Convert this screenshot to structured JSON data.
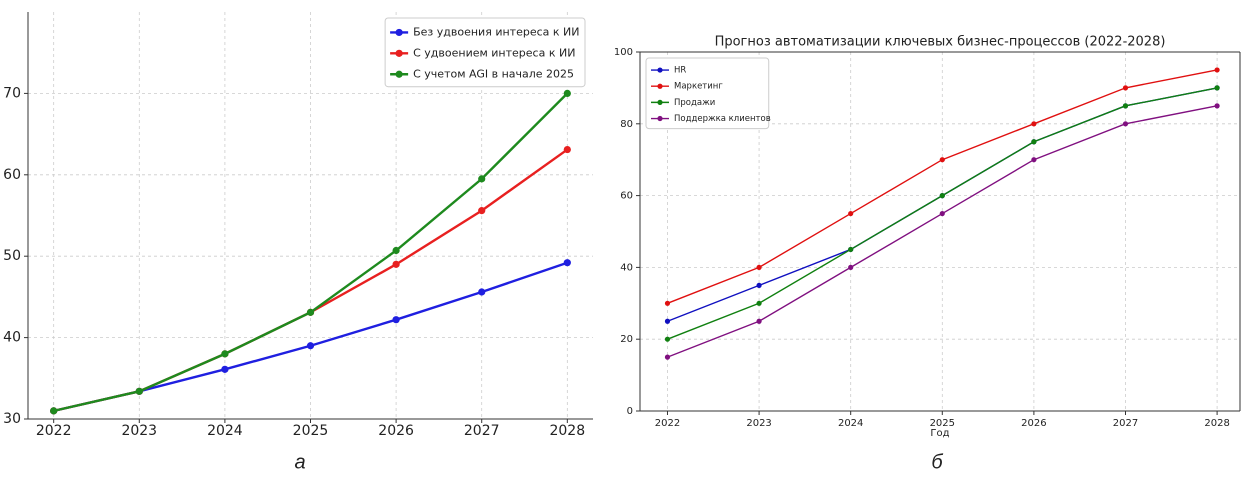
{
  "chart_data": [
    {
      "type": "line",
      "caption": "а",
      "x": [
        2022,
        2023,
        2024,
        2025,
        2026,
        2027,
        2028
      ],
      "xlim": [
        2021.7,
        2028.3
      ],
      "xticks": [
        2022,
        2023,
        2024,
        2025,
        2026,
        2027,
        2028
      ],
      "ylim": [
        30,
        80
      ],
      "yticks": [
        30,
        40,
        50,
        60,
        70
      ],
      "grid": true,
      "legend": "upper right",
      "series": [
        {
          "name": "Без удвоения интереса к ИИ",
          "color": "#1f1fe0",
          "values": [
            31,
            33.4,
            36.1,
            39.0,
            42.2,
            45.6,
            49.2
          ]
        },
        {
          "name": "С удвоением интереса к ИИ",
          "color": "#e82020",
          "values": [
            31,
            33.4,
            38,
            43.1,
            49.0,
            55.6,
            63.1
          ]
        },
        {
          "name": "С учетом AGI в начале 2025",
          "color": "#1e8a1e",
          "values": [
            31,
            33.4,
            38,
            43.1,
            50.7,
            59.5,
            70.0
          ]
        }
      ]
    },
    {
      "type": "line",
      "caption": "б",
      "title": "Прогноз автоматизации ключевых бизнес-процессов (2022-2028)",
      "xlabel": "Год",
      "x": [
        2022,
        2023,
        2024,
        2025,
        2026,
        2027,
        2028
      ],
      "xlim": [
        2021.7,
        2028.25
      ],
      "xticks": [
        2022,
        2023,
        2024,
        2025,
        2026,
        2027,
        2028
      ],
      "ylim": [
        0,
        100
      ],
      "yticks": [
        0,
        20,
        40,
        60,
        80,
        100
      ],
      "grid": true,
      "legend": "upper left",
      "series": [
        {
          "name": "HR",
          "color": "#1010c0",
          "values": [
            25,
            35,
            45,
            60,
            75,
            85,
            90
          ]
        },
        {
          "name": "Маркетинг",
          "color": "#e01010",
          "values": [
            30,
            40,
            55,
            70,
            80,
            90,
            95
          ]
        },
        {
          "name": "Продажи",
          "color": "#108010",
          "values": [
            20,
            30,
            45,
            60,
            75,
            85,
            90
          ]
        },
        {
          "name": "Поддержка клиентов",
          "color": "#801080",
          "values": [
            15,
            25,
            40,
            55,
            70,
            80,
            85
          ]
        }
      ]
    }
  ]
}
